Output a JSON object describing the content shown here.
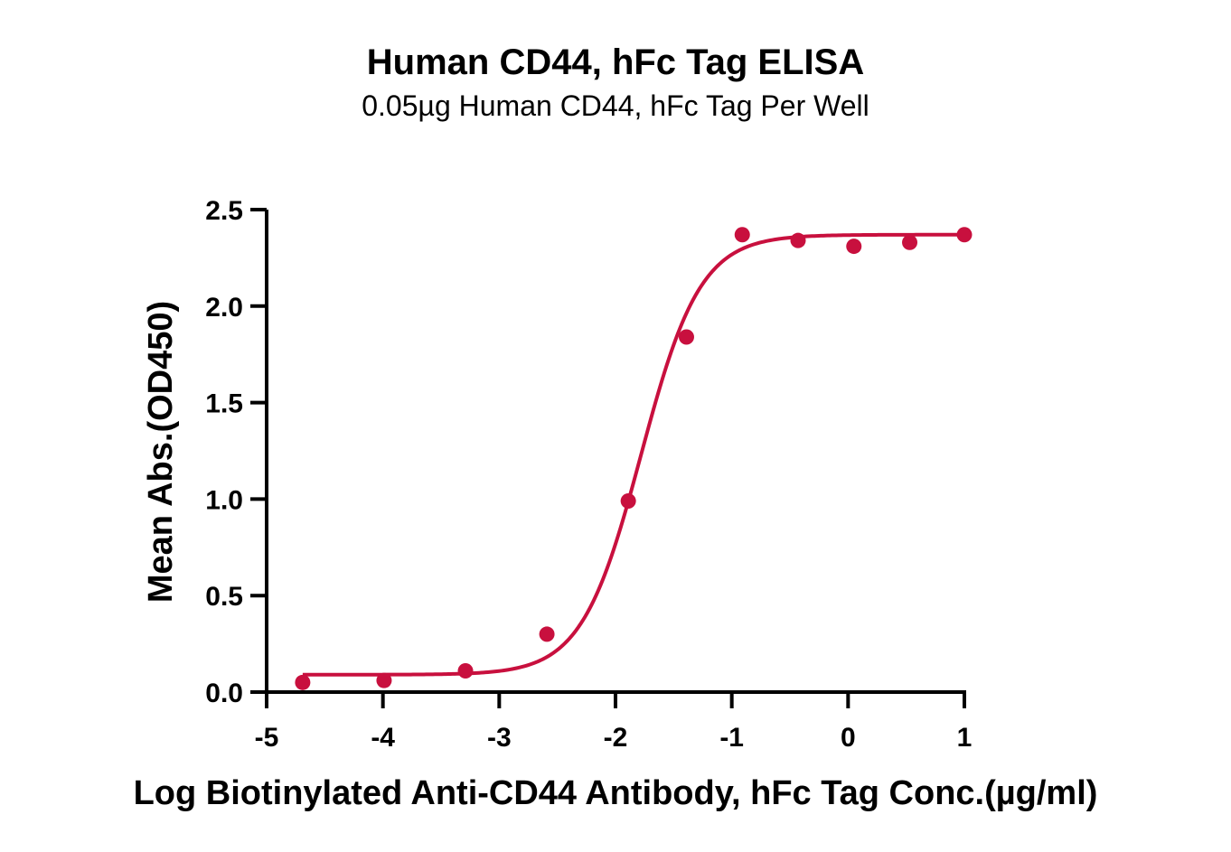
{
  "chart_data": {
    "type": "scatter",
    "title": "Human CD44, hFc Tag ELISA",
    "subtitle": "0.05µg Human CD44, hFc Tag Per Well",
    "xlabel": "Log Biotinylated Anti-CD44 Antibody, hFc Tag Conc.(µg/ml)",
    "ylabel": "Mean Abs.(OD450)",
    "xlim": [
      -5,
      1
    ],
    "ylim": [
      0,
      2.5
    ],
    "x_ticks": [
      -5,
      -4,
      -3,
      -2,
      -1,
      0,
      1
    ],
    "x_tick_labels": [
      "-5",
      "-4",
      "-3",
      "-2",
      "-1",
      "0",
      "1"
    ],
    "y_ticks": [
      0,
      0.5,
      1.0,
      1.5,
      2.0,
      2.5
    ],
    "y_tick_labels": [
      "0.0",
      "0.5",
      "1.0",
      "1.5",
      "2.0",
      "2.5"
    ],
    "grid": false,
    "series": [
      {
        "color": "#c8103e",
        "x": [
          -4.69,
          -3.99,
          -3.29,
          -2.59,
          -1.89,
          -1.39,
          -0.91,
          -0.43,
          0.05,
          0.53,
          1.0
        ],
        "y": [
          0.05,
          0.06,
          0.11,
          0.3,
          0.99,
          1.84,
          2.37,
          2.34,
          2.31,
          2.33,
          2.37
        ]
      }
    ],
    "fit": {
      "model": "4PL",
      "bottom": 0.09,
      "top": 2.37,
      "log_ec50": -1.78,
      "hill_slope": 1.7,
      "x_range": [
        -4.69,
        1.0
      ]
    }
  }
}
